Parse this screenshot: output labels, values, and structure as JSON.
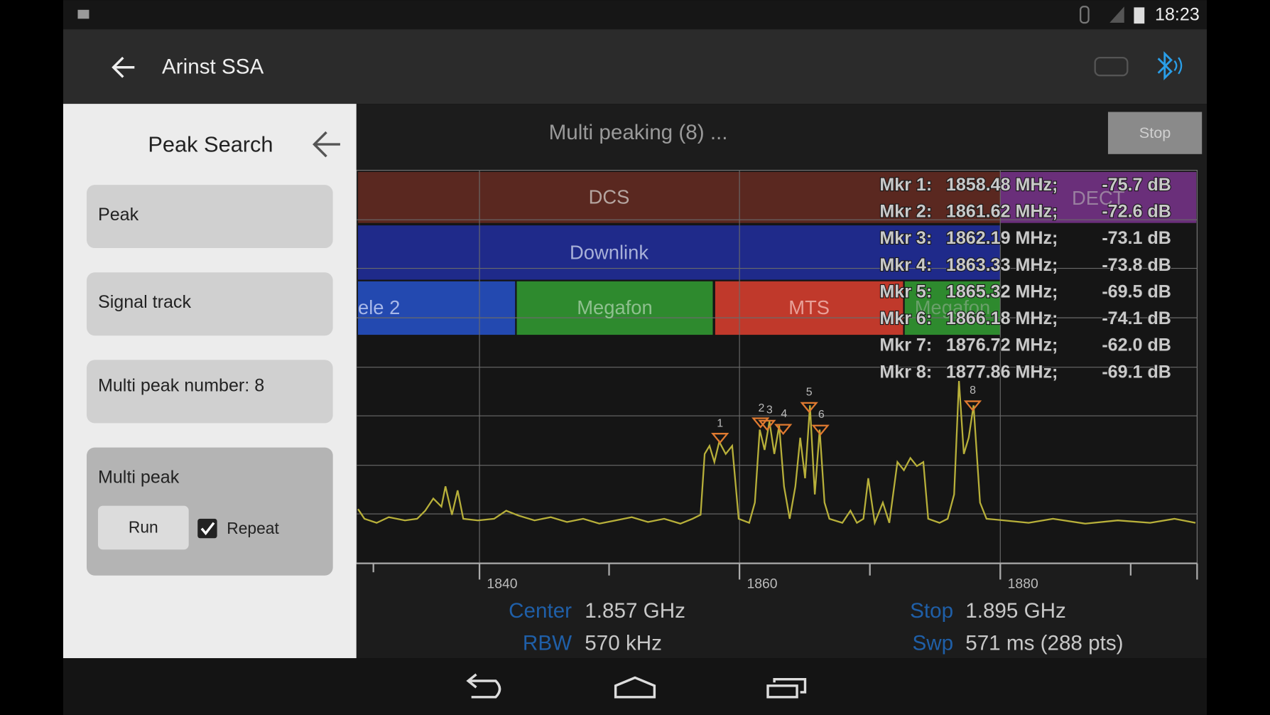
{
  "status_bar": {
    "time": "18:23"
  },
  "app_bar": {
    "title": "Arinst SSA"
  },
  "side_panel": {
    "title": "Peak Search",
    "buttons": [
      "Peak",
      "Signal track",
      "Multi peak number: 8"
    ],
    "multi_peak": {
      "title": "Multi peak",
      "run": "Run",
      "repeat": "Repeat",
      "repeat_checked": true
    }
  },
  "main": {
    "status": "Multi peaking (8) ...",
    "stop_button": "Stop",
    "bands": {
      "row1": [
        "DCS",
        "DECT"
      ],
      "row2": [
        "Downlink"
      ],
      "row3": [
        "ele 2",
        "Megafon",
        "MTS",
        "Megafon"
      ]
    },
    "markers": [
      {
        "label": "Mkr 1:",
        "frequency": "1858.48 MHz;",
        "level": "-75.7 dB",
        "tag": "1"
      },
      {
        "label": "Mkr 2:",
        "frequency": "1861.62 MHz;",
        "level": "-72.6 dB",
        "tag": "2"
      },
      {
        "label": "Mkr 3:",
        "frequency": "1862.19 MHz;",
        "level": "-73.1 dB",
        "tag": "3"
      },
      {
        "label": "Mkr 4:",
        "frequency": "1863.33 MHz;",
        "level": "-73.8 dB",
        "tag": "4"
      },
      {
        "label": "Mkr 5:",
        "frequency": "1865.32 MHz;",
        "level": "-69.5 dB",
        "tag": "5"
      },
      {
        "label": "Mkr 6:",
        "frequency": "1866.18 MHz;",
        "level": "-74.1 dB",
        "tag": "6"
      },
      {
        "label": "Mkr 7:",
        "frequency": "1876.72 MHz;",
        "level": "-62.0 dB"
      },
      {
        "label": "Mkr 8:",
        "frequency": "1877.86 MHz;",
        "level": "-69.1 dB",
        "tag": "8"
      }
    ],
    "x_axis_labels": [
      "1840",
      "1860",
      "1880"
    ],
    "info": {
      "center_label": "Center",
      "center": "1.857 GHz",
      "rbw_label": "RBW",
      "rbw": "570 kHz",
      "stop_label": "Stop",
      "stop": "1.895 GHz",
      "swp_label": "Swp",
      "swp": "571 ms (288 pts)"
    }
  }
}
